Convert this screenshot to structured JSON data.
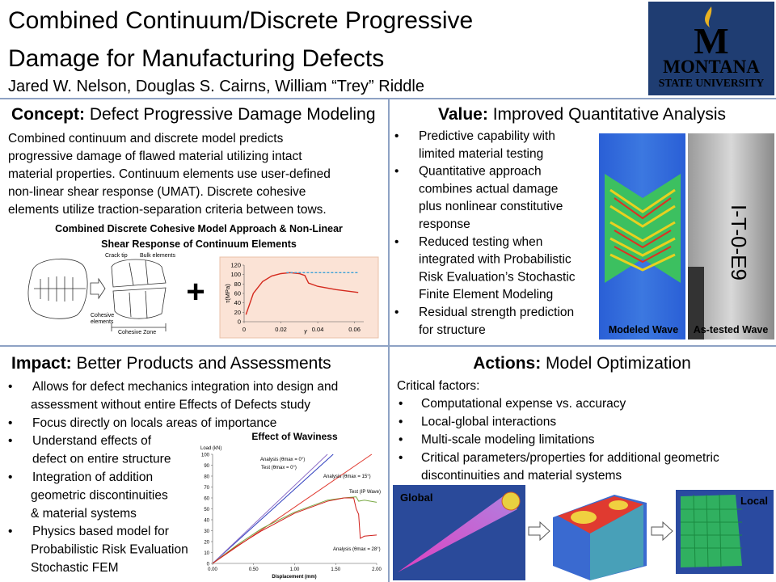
{
  "header": {
    "title_lines": [
      "Combined Continuum/Discrete Progressive",
      "Damage for Manufacturing Defects"
    ],
    "authors": "Jared W. Nelson, Douglas S. Cairns, William “Trey” Riddle",
    "logo": {
      "letter": "M",
      "top": "MONTANA",
      "bottom": "STATE UNIVERSITY"
    }
  },
  "concept": {
    "heading_bold": "Concept:",
    "heading_rest": " Defect Progressive Damage Modeling",
    "body_lines": [
      "Combined continuum and discrete model predicts",
      "progressive damage of flawed material utilizing intact",
      "material properties.  Continuum elements use user-defined",
      "non-linear shear response (UMAT).  Discrete cohesive",
      "elements utilize traction-separation criteria between tows."
    ],
    "caption_lines": [
      "Combined Discrete Cohesive Model Approach & Non-Linear",
      "Shear Response of Continuum Elements"
    ],
    "diagram_labels": {
      "crack_tip": "Crack tip",
      "bulk": "Bulk elements",
      "cohesive": [
        "Cohesive",
        "elements"
      ],
      "zone": "Cohesive Zone"
    },
    "plus": "+",
    "shear_chart": {
      "type": "line",
      "ylabel": "τ(MPa)",
      "xlabel": "γ",
      "xlim": [
        0,
        0.065
      ],
      "ylim": [
        0,
        120
      ],
      "xticks": [
        0,
        0.02,
        0.04,
        0.06
      ],
      "yticks": [
        0,
        20,
        40,
        60,
        80,
        100,
        120
      ],
      "series": [
        {
          "color": "#d42a1e",
          "dash": false,
          "x": [
            0.001,
            0.005,
            0.01,
            0.015,
            0.02,
            0.025,
            0.03,
            0.033,
            0.035,
            0.04,
            0.05,
            0.062
          ],
          "values": [
            15,
            60,
            85,
            97,
            102,
            104,
            102,
            98,
            82,
            75,
            68,
            62
          ]
        },
        {
          "color": "#3aa0d8",
          "dash": true,
          "x": [
            0.023,
            0.062
          ],
          "values": [
            104,
            104
          ]
        }
      ]
    }
  },
  "value": {
    "heading_bold": "Value:",
    "heading_rest": " Improved Quantitative Analysis",
    "bullets": [
      [
        "Predictive capability with",
        "limited material testing"
      ],
      [
        "Quantitative approach",
        "combines actual damage",
        "plus nonlinear constitutive",
        "response"
      ],
      [
        "Reduced testing when",
        "integrated with Probabilistic",
        "Risk Evaluation’s Stochastic",
        "Finite Element Modeling"
      ],
      [
        "Residual strength prediction",
        "for structure"
      ]
    ],
    "bullet_symbol": "•",
    "image_labels": [
      "Modeled Wave",
      "As-tested Wave"
    ],
    "specimen_text": "I-T-0-E9"
  },
  "impact": {
    "heading_bold": "Impact:",
    "heading_rest": " Better Products and Assessments",
    "bullets": [
      [
        "Allows for defect mechanics integration into design and",
        "assessment without entire Effects of Defects study"
      ],
      [
        "Focus directly on locals areas of importance"
      ],
      [
        "Understand effects of",
        "defect on entire structure"
      ],
      [
        "Integration of addition",
        "geometric discontinuities",
        "& material systems"
      ],
      [
        "Physics based model for",
        "Probabilistic Risk Evaluation",
        "Stochastic FEM"
      ]
    ],
    "waviness_chart": {
      "type": "line",
      "title": "Effect of Waviness",
      "ylabel": "Load (kN)",
      "xlabel": "Displacement (mm)",
      "xlim": [
        0,
        2.0
      ],
      "ylim": [
        0,
        100
      ],
      "xticks": [
        {
          "value": 0,
          "label": "0.00"
        },
        {
          "value": 0.5,
          "label": "0.50"
        },
        {
          "value": 1,
          "label": "1.00"
        },
        {
          "value": 1.5,
          "label": "1.50"
        },
        {
          "value": 2,
          "label": "2.00"
        }
      ],
      "yticks": [
        0,
        10,
        20,
        30,
        40,
        50,
        60,
        70,
        80,
        90,
        100
      ],
      "series": [
        {
          "name": "Analysis (θmax = 0°)",
          "color": "#2f3fbf",
          "x": [
            0,
            1.47
          ],
          "values": [
            0,
            100
          ]
        },
        {
          "name": "Test (θmax = 0°)",
          "color": "#8f6fc8",
          "x": [
            0,
            1.4
          ],
          "values": [
            0,
            100
          ]
        },
        {
          "name": "Analysis (θmax = 15°)",
          "color": "#e03a30",
          "x": [
            0,
            1.94
          ],
          "values": [
            0,
            100
          ]
        },
        {
          "name": "Test (IP Wave)",
          "color": "#79a844",
          "x": [
            0,
            0.3,
            0.6,
            1.0,
            1.4,
            1.6,
            1.75,
            1.78,
            1.85,
            2.0
          ],
          "values": [
            0,
            17,
            32,
            47,
            58,
            60,
            61,
            57,
            58,
            56
          ]
        },
        {
          "name": "Analysis (θmax = 28°)",
          "color": "#d0201c",
          "x": [
            0,
            0.3,
            0.6,
            1.0,
            1.4,
            1.6,
            1.72,
            1.75,
            1.78,
            1.8,
            1.85,
            2.0
          ],
          "values": [
            0,
            16,
            30,
            46,
            57,
            60,
            60,
            50,
            45,
            23,
            25,
            26
          ]
        }
      ]
    }
  },
  "actions": {
    "heading_bold": "Actions:",
    "heading_rest": " Model Optimization",
    "intro": "Critical factors:",
    "bullets": [
      [
        "Computational expense vs. accuracy"
      ],
      [
        "Local-global interactions"
      ],
      [
        "Multi-scale modeling limitations"
      ],
      [
        "Critical parameters/properties for additional geometric",
        "discontinuities and material systems"
      ]
    ],
    "image_labels": [
      "Global",
      "Local"
    ]
  }
}
